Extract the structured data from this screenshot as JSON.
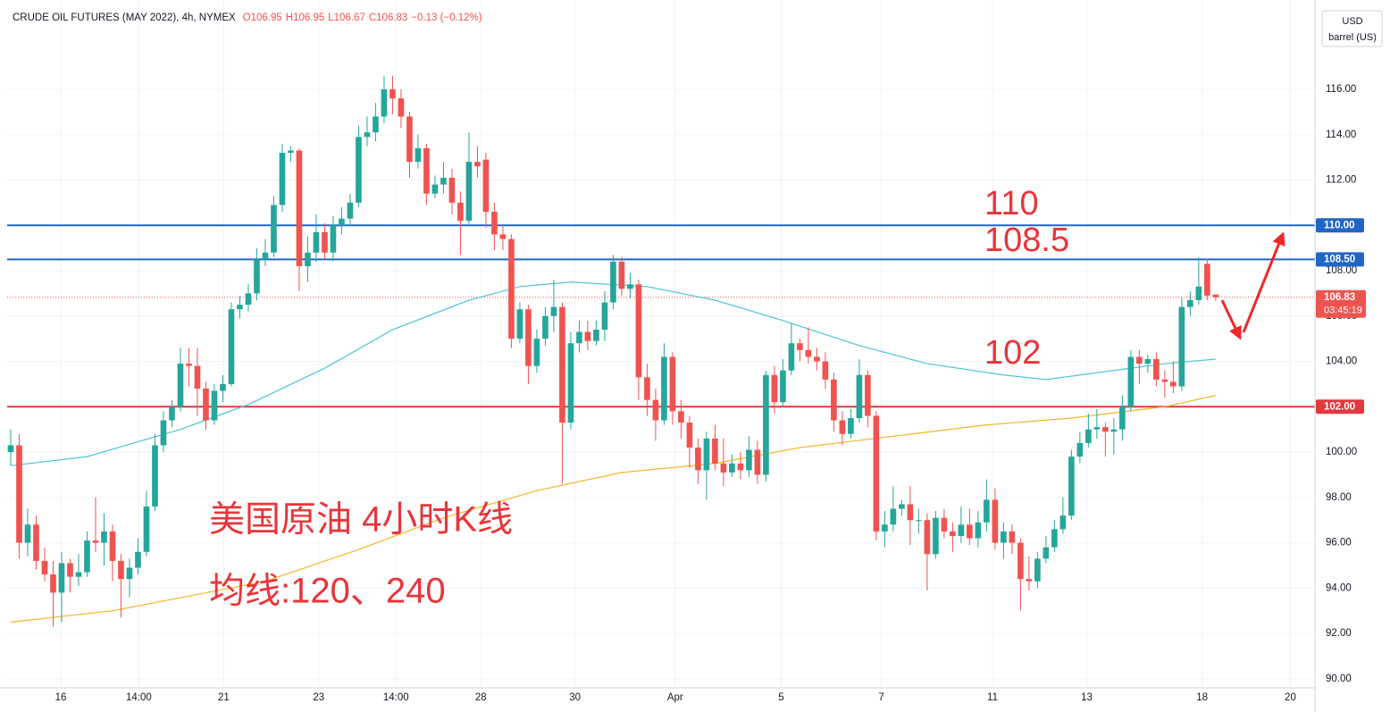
{
  "chart_data": {
    "type": "candlestick",
    "title": "CRUDE OIL FUTURES (MAY 2022), 4h, NYMEX",
    "ohlc": [
      "O106.95",
      "H106.95",
      "L106.67",
      "C106.83"
    ],
    "change": "−0.13 (−0.12%)",
    "currency": "USD",
    "unit": "barrel (US)",
    "up_color": "#26a69a",
    "down_color": "#ef5350",
    "open": [
      100.0,
      100.3,
      96.0,
      96.8,
      95.2,
      94.6,
      93.8,
      95.1,
      94.5,
      94.7,
      96.1,
      96.0,
      96.5,
      95.2,
      94.4,
      94.9,
      95.6,
      97.6,
      100.3,
      101.4,
      102.0,
      103.9,
      103.8,
      102.8,
      101.4,
      102.7,
      103.0,
      106.3,
      106.5,
      107.0,
      108.5,
      108.8,
      110.9,
      113.2,
      113.3,
      108.2,
      108.8,
      109.7,
      108.8,
      110.0,
      110.3,
      111.0,
      113.9,
      114.1,
      114.8,
      116.0,
      115.6,
      114.8,
      112.8,
      113.4,
      111.4,
      111.8,
      112.1,
      111.0,
      110.2,
      112.8,
      112.9,
      110.6,
      109.6,
      109.4,
      105.0,
      106.3,
      103.8,
      105.0,
      106.0,
      106.4,
      101.3,
      104.8,
      105.3,
      104.9,
      105.4,
      106.6,
      108.4,
      107.2,
      107.4,
      103.3,
      102.3,
      101.4,
      104.2,
      101.8,
      101.3,
      100.2,
      99.2,
      100.6,
      99.5,
      99.1,
      99.5,
      99.2,
      100.1,
      99.0,
      103.4,
      102.2,
      103.6,
      104.8,
      104.5,
      104.2,
      104.0,
      103.2,
      101.4,
      100.8,
      101.5,
      103.4,
      101.6,
      96.5,
      96.8,
      97.5,
      97.7,
      97.0,
      97.0,
      95.5,
      97.1,
      96.5,
      96.3,
      96.8,
      96.2,
      96.9,
      97.9,
      96.0,
      96.5,
      96.0,
      94.4,
      94.3,
      95.3,
      95.8,
      96.6,
      97.2,
      99.8,
      100.4,
      101.0,
      101.1,
      100.9,
      101.0,
      102.0,
      104.2,
      103.9,
      104.1,
      103.2,
      103.1,
      102.9,
      106.4,
      106.7,
      108.3,
      106.95
    ],
    "high": [
      101.0,
      100.8,
      97.5,
      97.2,
      95.8,
      95.2,
      95.6,
      95.3,
      95.5,
      96.5,
      98.0,
      97.3,
      96.8,
      95.5,
      95.3,
      96.2,
      98.3,
      100.8,
      101.8,
      102.3,
      104.6,
      104.6,
      104.6,
      103.1,
      103.0,
      103.4,
      106.6,
      106.9,
      107.4,
      109.0,
      109.4,
      111.3,
      113.6,
      113.5,
      113.4,
      109.5,
      110.5,
      110.1,
      110.4,
      110.8,
      111.4,
      114.4,
      114.8,
      115.4,
      116.6,
      116.6,
      116.0,
      115.0,
      114.0,
      113.6,
      112.2,
      112.8,
      112.5,
      111.5,
      114.1,
      113.5,
      113.2,
      111.0,
      110.0,
      109.6,
      106.6,
      106.5,
      105.4,
      106.4,
      107.6,
      106.6,
      105.3,
      105.8,
      105.8,
      105.8,
      107.1,
      108.7,
      108.6,
      107.9,
      107.6,
      103.9,
      102.8,
      104.8,
      104.4,
      102.3,
      101.6,
      100.6,
      100.9,
      101.2,
      100.6,
      99.9,
      100.0,
      100.7,
      100.5,
      103.6,
      103.8,
      104.1,
      105.7,
      105.0,
      105.5,
      104.6,
      104.4,
      103.5,
      101.8,
      101.9,
      104.1,
      103.6,
      101.8,
      97.4,
      98.5,
      97.9,
      98.5,
      97.5,
      97.3,
      97.4,
      97.5,
      96.9,
      97.6,
      97.5,
      97.4,
      98.8,
      98.4,
      96.9,
      96.8,
      96.2,
      95.4,
      95.6,
      96.3,
      97.0,
      98.0,
      100.1,
      100.9,
      101.7,
      101.9,
      101.3,
      101.5,
      102.5,
      104.5,
      104.5,
      104.3,
      104.4,
      103.6,
      104.0,
      106.8,
      107.1,
      108.6,
      108.5,
      106.95
    ],
    "low": [
      99.4,
      95.3,
      95.4,
      94.8,
      94.3,
      92.3,
      92.5,
      93.8,
      94.1,
      94.5,
      95.6,
      95.0,
      94.3,
      92.7,
      93.6,
      94.6,
      95.4,
      97.4,
      100.0,
      101.1,
      101.8,
      102.9,
      101.6,
      101.0,
      101.2,
      102.2,
      102.9,
      105.9,
      106.2,
      106.7,
      108.2,
      108.6,
      110.6,
      112.8,
      107.1,
      107.5,
      108.4,
      108.5,
      108.4,
      109.6,
      110.0,
      110.8,
      113.5,
      113.7,
      114.5,
      114.9,
      114.3,
      112.1,
      112.5,
      110.9,
      111.2,
      111.4,
      110.5,
      108.7,
      110.0,
      112.1,
      109.9,
      108.9,
      108.9,
      104.6,
      104.8,
      103.0,
      103.5,
      104.7,
      105.3,
      98.6,
      101.0,
      104.4,
      104.5,
      104.7,
      104.9,
      106.3,
      106.9,
      106.8,
      102.3,
      101.6,
      100.5,
      101.2,
      101.2,
      100.6,
      99.3,
      98.6,
      97.9,
      99.2,
      98.5,
      98.9,
      98.8,
      98.9,
      98.6,
      98.7,
      101.7,
      102.0,
      103.4,
      104.0,
      103.9,
      103.6,
      102.8,
      100.9,
      100.3,
      100.6,
      101.3,
      101.1,
      96.1,
      95.8,
      96.5,
      97.2,
      95.9,
      96.4,
      93.9,
      95.3,
      96.2,
      95.6,
      96.0,
      95.9,
      95.8,
      96.5,
      95.7,
      95.3,
      95.5,
      93.0,
      93.9,
      94.0,
      95.1,
      95.6,
      96.4,
      97.0,
      99.5,
      100.2,
      100.6,
      99.8,
      99.9,
      100.5,
      101.8,
      103.0,
      103.5,
      102.9,
      102.4,
      102.6,
      102.7,
      106.0,
      106.5,
      106.7,
      106.67
    ],
    "close": [
      100.3,
      96.0,
      96.8,
      95.2,
      94.6,
      93.8,
      95.1,
      94.5,
      94.7,
      96.1,
      96.0,
      96.5,
      95.2,
      94.4,
      94.9,
      95.6,
      97.6,
      100.3,
      101.4,
      102.0,
      103.9,
      103.8,
      102.8,
      101.4,
      102.7,
      103.0,
      106.3,
      106.5,
      107.0,
      108.5,
      108.8,
      110.9,
      113.2,
      113.3,
      108.2,
      108.8,
      109.7,
      108.8,
      110.0,
      110.3,
      111.0,
      113.9,
      114.1,
      114.8,
      116.0,
      115.6,
      114.8,
      112.8,
      113.4,
      111.4,
      111.8,
      112.1,
      111.0,
      110.2,
      112.8,
      112.6,
      110.6,
      109.6,
      109.4,
      105.0,
      106.3,
      103.8,
      105.0,
      106.0,
      106.4,
      101.3,
      104.8,
      105.3,
      104.9,
      105.4,
      106.6,
      108.4,
      107.2,
      107.4,
      103.3,
      102.3,
      101.4,
      104.2,
      101.8,
      101.3,
      100.2,
      99.2,
      100.6,
      99.5,
      99.1,
      99.5,
      99.2,
      100.1,
      99.0,
      103.4,
      102.2,
      103.6,
      104.8,
      104.5,
      104.2,
      104.0,
      103.2,
      101.4,
      100.8,
      101.5,
      103.4,
      101.6,
      96.5,
      96.8,
      97.5,
      97.7,
      97.0,
      97.0,
      95.5,
      97.1,
      96.5,
      96.3,
      96.8,
      96.2,
      96.9,
      97.9,
      96.0,
      96.5,
      96.0,
      94.4,
      94.3,
      95.3,
      95.8,
      96.6,
      97.2,
      99.8,
      100.4,
      101.0,
      101.1,
      100.9,
      101.0,
      102.0,
      104.2,
      103.9,
      104.1,
      103.2,
      103.1,
      102.9,
      106.4,
      106.7,
      107.3,
      106.9,
      106.83
    ],
    "moving_averages": [
      {
        "color": "#4fc3d7",
        "x": [
          0,
          9,
          20,
          28,
          37,
          45,
          54,
          60,
          66,
          75,
          83,
          91,
          100,
          108,
          117,
          122,
          128,
          136,
          142
        ],
        "values": [
          99.4,
          99.8,
          101.0,
          102.1,
          103.7,
          105.4,
          106.7,
          107.3,
          107.5,
          107.3,
          106.7,
          105.8,
          104.7,
          103.9,
          103.4,
          103.2,
          103.5,
          103.9,
          104.1
        ]
      },
      {
        "color": "#f5b52c",
        "x": [
          0,
          12,
          30,
          41,
          51,
          62,
          72,
          83,
          93,
          104,
          115,
          125,
          136,
          142
        ],
        "values": [
          92.5,
          93.0,
          94.3,
          95.7,
          97.1,
          98.3,
          99.1,
          99.5,
          100.2,
          100.7,
          101.2,
          101.5,
          102.0,
          102.5
        ]
      }
    ],
    "levels": [
      {
        "value": 110,
        "label": "110.00",
        "color": "#2166c4"
      },
      {
        "value": 108.5,
        "label": "108.50",
        "color": "#2166c4"
      },
      {
        "value": 102,
        "label": "102.00",
        "color": "#e0393e"
      }
    ],
    "last_price": {
      "value": 106.83,
      "label": "106.83",
      "countdown": "03:45:19",
      "color": "#ef5350"
    },
    "annotations": [
      "110",
      "108.5",
      "102",
      "美国原油 4小时K线",
      "均线:120、240"
    ],
    "ylim": [
      89.6,
      119.94
    ],
    "yticks": [
      {
        "value": 90,
        "label": "90.00"
      },
      {
        "value": 92,
        "label": "92.00"
      },
      {
        "value": 94,
        "label": "94.00"
      },
      {
        "value": 96,
        "label": "96.00"
      },
      {
        "value": 98,
        "label": "98.00"
      },
      {
        "value": 100,
        "label": "100.00"
      },
      {
        "value": 102,
        "label": "102.00"
      },
      {
        "value": 104,
        "label": "104.00"
      },
      {
        "value": 106,
        "label": "106.00"
      },
      {
        "value": 108,
        "label": "108.00"
      },
      {
        "value": 110,
        "label": "110.00"
      },
      {
        "value": 112,
        "label": "112.00"
      },
      {
        "value": 114,
        "label": "114.00"
      },
      {
        "value": 116,
        "label": "116.00"
      }
    ],
    "xlim": [
      -0.42,
      153.7
    ],
    "xticks": [
      {
        "value": 5.9,
        "label": "16"
      },
      {
        "value": 15.1,
        "label": "14:00"
      },
      {
        "value": 25.1,
        "label": "21"
      },
      {
        "value": 36.3,
        "label": "23"
      },
      {
        "value": 45.4,
        "label": "14:00"
      },
      {
        "value": 55.4,
        "label": "28"
      },
      {
        "value": 66.5,
        "label": "30"
      },
      {
        "value": 78.3,
        "label": "Apr"
      },
      {
        "value": 90.8,
        "label": "5"
      },
      {
        "value": 102.6,
        "label": "7"
      },
      {
        "value": 115.7,
        "label": "11"
      },
      {
        "value": 126.8,
        "label": "13"
      },
      {
        "value": 140.4,
        "label": "18"
      },
      {
        "value": 150.8,
        "label": "20"
      }
    ],
    "grid": true
  }
}
